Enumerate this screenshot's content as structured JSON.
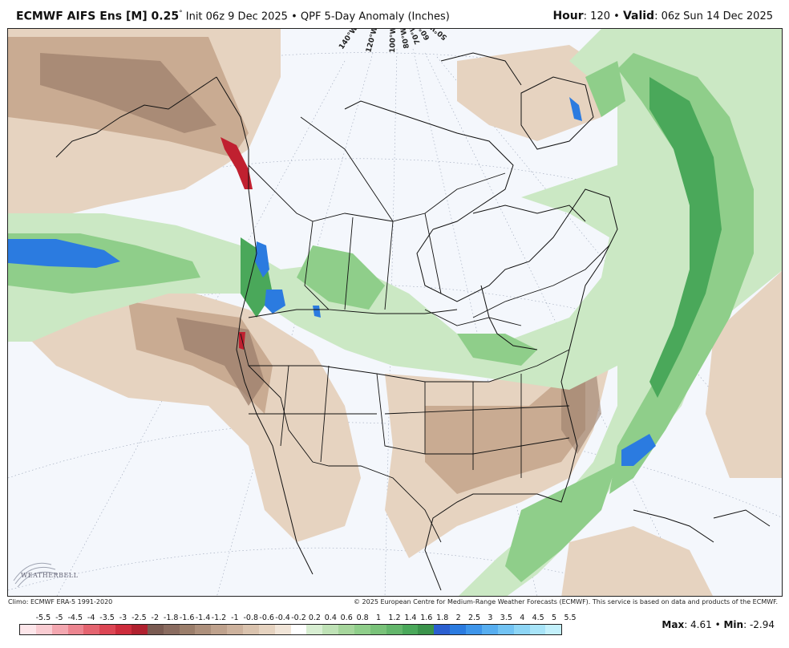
{
  "header": {
    "model": "ECMWF AIFS Ens [M] 0.25",
    "deg_symbol": "°",
    "init": " Init 06z 9 Dec 2025",
    "sep": " • ",
    "product": "QPF 5-Day Anomaly (Inches)",
    "hour_label": "Hour",
    "hour_value": ": 120",
    "valid_label": "Valid",
    "valid_value": ": 06z Sun 14 Dec 2025"
  },
  "map": {
    "longitude_labels": [
      "140°W",
      "120°W",
      "100°W",
      "80°W",
      "70°W",
      "60°W",
      "50°W"
    ],
    "colors": {
      "land_bg": "#f4f7fc",
      "light_green": "#cbe8c4",
      "mid_green": "#8fce8a",
      "dark_green": "#4aa85a",
      "light_brown": "#e6d3c0",
      "mid_brown": "#c9ab92",
      "dark_brown": "#9b7e6b",
      "blue": "#2b7be0",
      "red": "#c02030"
    }
  },
  "footer": {
    "climo": "Climo: ECMWF ERA-5 1991-2020",
    "copyright": "© 2025 European Centre for Medium-Range Weather Forecasts (ECMWF). This service is based on data and products of the ECMWF."
  },
  "logo": {
    "text": "WEATHERBELL"
  },
  "scale": {
    "labels": [
      "-5.5",
      "-5",
      "-4.5",
      "-4",
      "-3.5",
      "-3",
      "-2.5",
      "-2",
      "-1.8",
      "-1.6",
      "-1.4",
      "-1.2",
      "-1",
      "-0.8",
      "-0.6",
      "-0.4",
      "-0.2",
      "0.2",
      "0.4",
      "0.6",
      "0.8",
      "1",
      "1.2",
      "1.4",
      "1.6",
      "1.8",
      "2",
      "2.5",
      "3",
      "3.5",
      "4",
      "4.5",
      "5",
      "5.5"
    ],
    "colors": [
      "#fde6ea",
      "#f9ccd2",
      "#f3a7b0",
      "#ec8590",
      "#e46470",
      "#dc4654",
      "#cd2c3c",
      "#b0212f",
      "#7a5b52",
      "#8a6c60",
      "#9b7e6b",
      "#ad907c",
      "#bfa28d",
      "#cdb29d",
      "#dac3ae",
      "#e6d3c0",
      "#f1e5d8",
      "#ffffff",
      "#d8eed2",
      "#bfe2b6",
      "#a6d69c",
      "#8fce8a",
      "#79c279",
      "#63b66b",
      "#4aa85a",
      "#3b934b",
      "#2b5fd0",
      "#2b7be0",
      "#3e95ea",
      "#57aef0",
      "#72c3f3",
      "#8dd5f5",
      "#a8e4f8",
      "#c3f0fb"
    ]
  },
  "maxmin": {
    "max_label": "Max",
    "max_value": ": 4.61",
    "sep": " • ",
    "min_label": "Min",
    "min_value": ": -2.94"
  }
}
